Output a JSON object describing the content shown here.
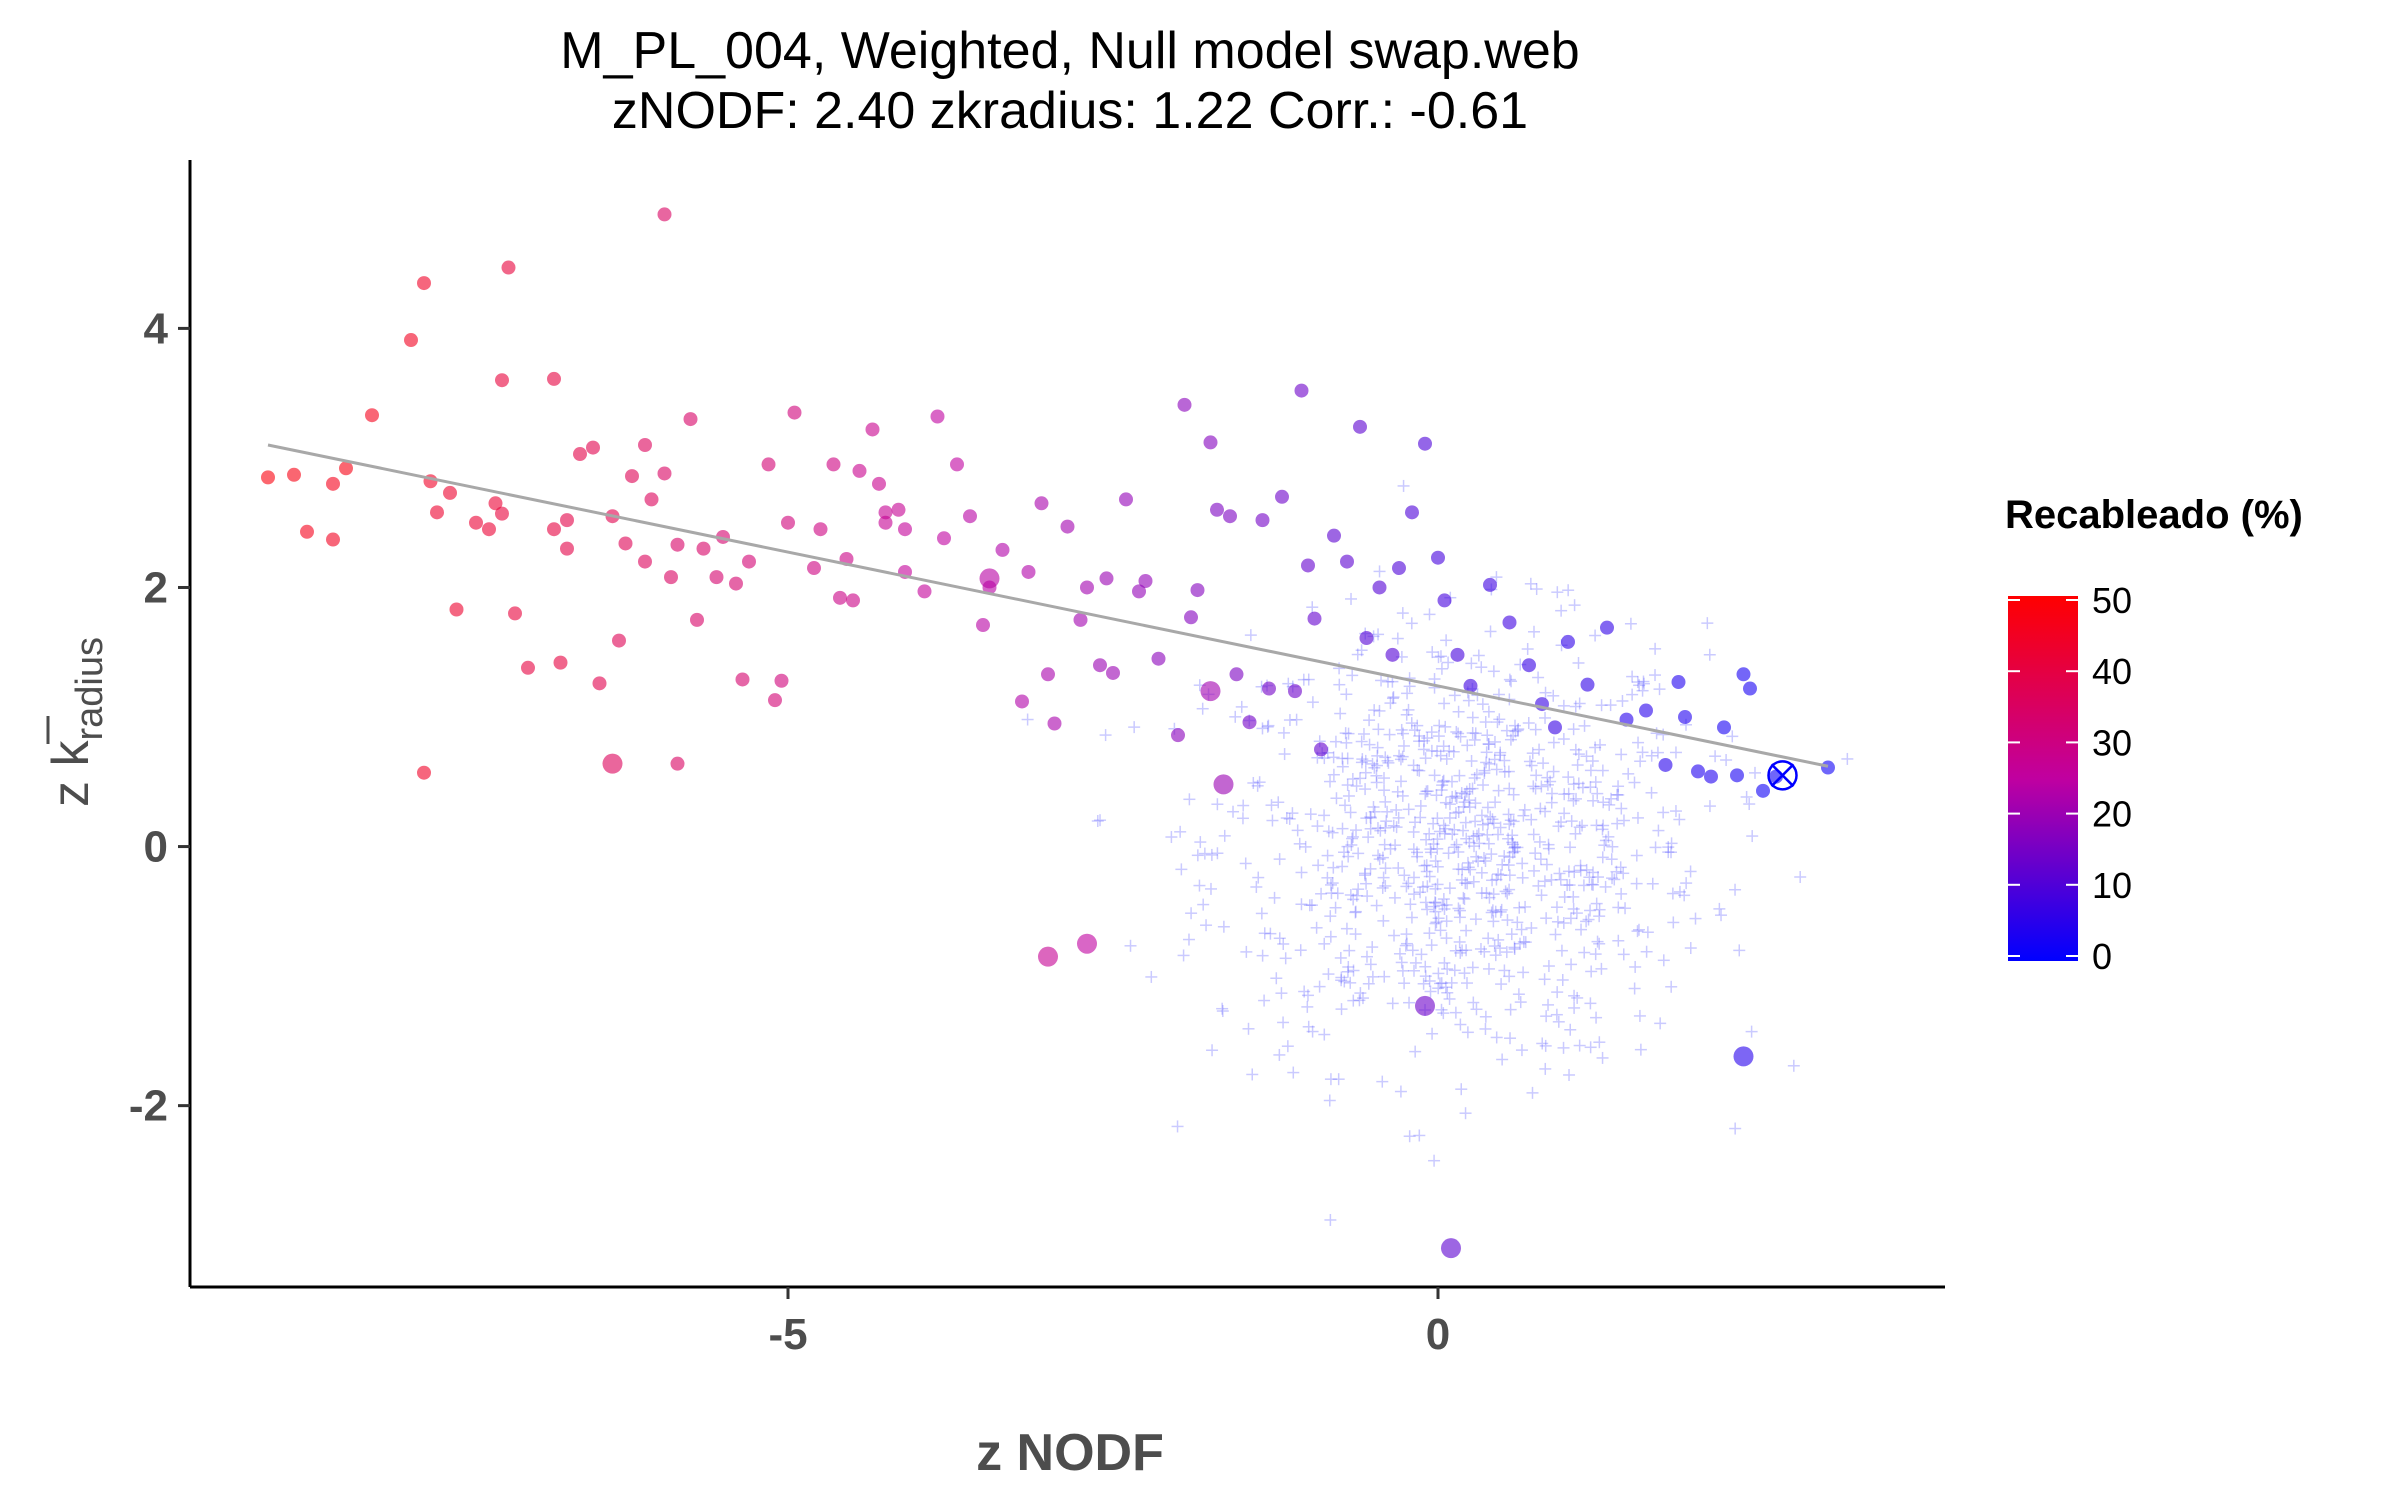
{
  "chart_data": {
    "type": "scatter",
    "title": "M_PL_004, Weighted, Null model swap.web",
    "subtitle": "zNODF: 2.40 zkradius: 1.22 Corr.: -0.61",
    "xlabel": "z NODF",
    "ylabel": "z k radius",
    "ylabel_parts": {
      "prefix": "z ",
      "main": "k",
      "sub": "radius"
    },
    "xlim": [
      -9.6,
      3.9
    ],
    "ylim": [
      -3.4,
      5.3
    ],
    "x_ticks": [
      -5,
      0
    ],
    "x_tick_labels": [
      "-5",
      "0"
    ],
    "y_ticks": [
      -2,
      0,
      2,
      4
    ],
    "y_tick_labels": [
      "-2",
      "0",
      "2",
      "4"
    ],
    "grid": false,
    "legend": {
      "title": "Recableado (%)",
      "placement": "right",
      "scale": "continuous",
      "range": [
        0,
        50
      ],
      "ticks": [
        0,
        10,
        20,
        30,
        40,
        50
      ],
      "tick_labels": [
        "0",
        "10",
        "20",
        "30",
        "40",
        "50"
      ],
      "colors": {
        "low": "#0000ff",
        "mid": "#c000a0",
        "high": "#ff0000"
      }
    },
    "regression_line": {
      "color": "#a8a8a8",
      "points": [
        [
          -9.0,
          3.1
        ],
        [
          3.0,
          0.62
        ]
      ]
    },
    "observed_point": {
      "x": 2.65,
      "y": 0.55,
      "color": "#0000ff",
      "marker": "circle-cross"
    },
    "null_model_cloud": {
      "marker": "plus",
      "color": "#6a6aff",
      "center": [
        0.15,
        0.0
      ],
      "spread": [
        0.95,
        0.85
      ],
      "count": 900
    },
    "series": [
      {
        "marker": "filled-circle",
        "color_by": "Recableado (%)",
        "points": [
          [
            -9.0,
            2.85,
            48
          ],
          [
            -8.8,
            2.87,
            47
          ],
          [
            -8.7,
            2.43,
            46
          ],
          [
            -8.5,
            2.37,
            45
          ],
          [
            -8.5,
            2.8,
            46
          ],
          [
            -8.4,
            2.92,
            47
          ],
          [
            -8.2,
            3.33,
            46
          ],
          [
            -7.9,
            3.91,
            45
          ],
          [
            -7.8,
            4.35,
            44
          ],
          [
            -7.8,
            0.57,
            44
          ],
          [
            -7.75,
            2.82,
            44
          ],
          [
            -7.7,
            2.58,
            43
          ],
          [
            -7.6,
            2.73,
            43
          ],
          [
            -7.55,
            1.83,
            43
          ],
          [
            -7.4,
            2.5,
            42
          ],
          [
            -7.3,
            2.45,
            42
          ],
          [
            -7.25,
            2.65,
            42
          ],
          [
            -7.2,
            2.57,
            41
          ],
          [
            -7.2,
            3.6,
            41
          ],
          [
            -7.15,
            4.47,
            41
          ],
          [
            -7.1,
            1.8,
            41
          ],
          [
            -7.0,
            1.38,
            40
          ],
          [
            -6.8,
            2.45,
            40
          ],
          [
            -6.8,
            3.61,
            40
          ],
          [
            -6.75,
            1.42,
            40
          ],
          [
            -6.7,
            2.3,
            39
          ],
          [
            -6.7,
            2.52,
            39
          ],
          [
            -6.6,
            3.03,
            39
          ],
          [
            -6.5,
            3.08,
            38
          ],
          [
            -6.45,
            1.26,
            38
          ],
          [
            -6.35,
            2.55,
            38
          ],
          [
            -6.3,
            1.59,
            37
          ],
          [
            -6.25,
            2.34,
            37
          ],
          [
            -6.2,
            2.86,
            37
          ],
          [
            -6.1,
            3.1,
            36
          ],
          [
            -6.1,
            2.2,
            36
          ],
          [
            -6.05,
            2.68,
            36
          ],
          [
            -5.95,
            2.88,
            35
          ],
          [
            -5.95,
            4.88,
            35
          ],
          [
            -5.9,
            2.08,
            35
          ],
          [
            -5.85,
            0.64,
            35
          ],
          [
            -5.85,
            2.33,
            34
          ],
          [
            -5.75,
            3.3,
            34
          ],
          [
            -5.7,
            1.75,
            34
          ],
          [
            -5.65,
            2.3,
            34
          ],
          [
            -5.55,
            2.08,
            33
          ],
          [
            -5.5,
            2.39,
            33
          ],
          [
            -5.4,
            2.03,
            33
          ],
          [
            -5.35,
            1.29,
            33
          ],
          [
            -5.3,
            2.2,
            32
          ],
          [
            -5.15,
            2.95,
            32
          ],
          [
            -5.1,
            1.13,
            32
          ],
          [
            -5.05,
            1.28,
            31
          ],
          [
            -5.0,
            2.5,
            31
          ],
          [
            -4.95,
            3.35,
            31
          ],
          [
            -4.8,
            2.15,
            30
          ],
          [
            -4.75,
            2.45,
            30
          ],
          [
            -4.65,
            2.95,
            30
          ],
          [
            -4.6,
            1.92,
            29
          ],
          [
            -4.55,
            2.22,
            29
          ],
          [
            -4.5,
            1.9,
            29
          ],
          [
            -4.45,
            2.9,
            28
          ],
          [
            -4.35,
            3.22,
            28
          ],
          [
            -4.3,
            2.8,
            28
          ],
          [
            -4.25,
            2.58,
            27
          ],
          [
            -4.25,
            2.5,
            27
          ],
          [
            -4.15,
            2.6,
            27
          ],
          [
            -4.1,
            2.45,
            26
          ],
          [
            -4.1,
            2.12,
            26
          ],
          [
            -3.95,
            1.97,
            26
          ],
          [
            -3.85,
            3.32,
            25
          ],
          [
            -3.8,
            2.38,
            25
          ],
          [
            -3.7,
            2.95,
            25
          ],
          [
            -3.6,
            2.55,
            24
          ],
          [
            -3.5,
            1.71,
            24
          ],
          [
            -3.45,
            2.0,
            24
          ],
          [
            -3.35,
            2.29,
            23
          ],
          [
            -3.2,
            1.12,
            23
          ],
          [
            -3.15,
            2.12,
            23
          ],
          [
            -3.05,
            2.65,
            22
          ],
          [
            -3.0,
            1.33,
            22
          ],
          [
            -2.95,
            0.95,
            22
          ],
          [
            -2.85,
            2.47,
            21
          ],
          [
            -2.75,
            1.75,
            21
          ],
          [
            -2.7,
            2.0,
            21
          ],
          [
            -2.6,
            1.4,
            20
          ],
          [
            -2.55,
            2.07,
            20
          ],
          [
            -2.5,
            1.34,
            20
          ],
          [
            -2.4,
            2.68,
            19
          ],
          [
            -2.3,
            1.97,
            19
          ],
          [
            -2.25,
            2.05,
            19
          ],
          [
            -2.15,
            1.45,
            18
          ],
          [
            -2.0,
            0.86,
            18
          ],
          [
            -1.95,
            3.41,
            18
          ],
          [
            -1.9,
            1.77,
            17
          ],
          [
            -1.85,
            1.98,
            17
          ],
          [
            -1.75,
            3.12,
            17
          ],
          [
            -1.7,
            2.6,
            16
          ],
          [
            -1.6,
            2.55,
            16
          ],
          [
            -1.55,
            1.33,
            16
          ],
          [
            -1.45,
            0.96,
            15
          ],
          [
            -1.35,
            2.52,
            15
          ],
          [
            -1.3,
            1.22,
            15
          ],
          [
            -1.2,
            2.7,
            14
          ],
          [
            -1.1,
            1.2,
            14
          ],
          [
            -1.05,
            3.52,
            14
          ],
          [
            -1.0,
            2.17,
            13
          ],
          [
            -0.95,
            1.76,
            13
          ],
          [
            -0.9,
            0.75,
            13
          ],
          [
            -0.8,
            2.4,
            12
          ],
          [
            -0.7,
            2.2,
            12
          ],
          [
            -0.6,
            3.24,
            12
          ],
          [
            -0.55,
            1.61,
            11
          ],
          [
            -0.45,
            2.0,
            11
          ],
          [
            -0.35,
            1.48,
            11
          ],
          [
            -0.3,
            2.15,
            10
          ],
          [
            -0.2,
            2.58,
            10
          ],
          [
            -0.1,
            3.11,
            10
          ],
          [
            0.0,
            2.23,
            9
          ],
          [
            0.05,
            1.9,
            9
          ],
          [
            0.15,
            1.48,
            9
          ],
          [
            0.25,
            1.24,
            8
          ],
          [
            0.4,
            2.02,
            8
          ],
          [
            0.55,
            1.73,
            8
          ],
          [
            0.7,
            1.4,
            7
          ],
          [
            0.8,
            1.1,
            7
          ],
          [
            0.9,
            0.92,
            7
          ],
          [
            1.0,
            1.58,
            6
          ],
          [
            1.15,
            1.25,
            6
          ],
          [
            1.3,
            1.69,
            6
          ],
          [
            1.45,
            0.98,
            5
          ],
          [
            1.6,
            1.05,
            5
          ],
          [
            1.75,
            0.63,
            5
          ],
          [
            1.85,
            1.27,
            4
          ],
          [
            1.9,
            1.0,
            4
          ],
          [
            2.0,
            0.58,
            4
          ],
          [
            2.1,
            0.54,
            4
          ],
          [
            2.2,
            0.92,
            3
          ],
          [
            2.3,
            0.55,
            3
          ],
          [
            2.35,
            1.33,
            3
          ],
          [
            2.4,
            1.22,
            3
          ],
          [
            2.5,
            0.43,
            2
          ],
          [
            2.6,
            0.54,
            2
          ],
          [
            3.0,
            0.61,
            2
          ]
        ]
      },
      {
        "marker": "filled-circle-large",
        "color_by": "Recableado (%)",
        "points": [
          [
            -6.35,
            0.64,
            36
          ],
          [
            -3.0,
            -0.85,
            27
          ],
          [
            -2.7,
            -0.75,
            25
          ],
          [
            -1.75,
            1.2,
            21
          ],
          [
            -1.65,
            0.48,
            20
          ],
          [
            -0.1,
            -1.23,
            14
          ],
          [
            0.1,
            -3.1,
            12
          ],
          [
            2.35,
            -1.62,
            5
          ],
          [
            -3.45,
            2.07,
            24
          ]
        ]
      }
    ]
  }
}
